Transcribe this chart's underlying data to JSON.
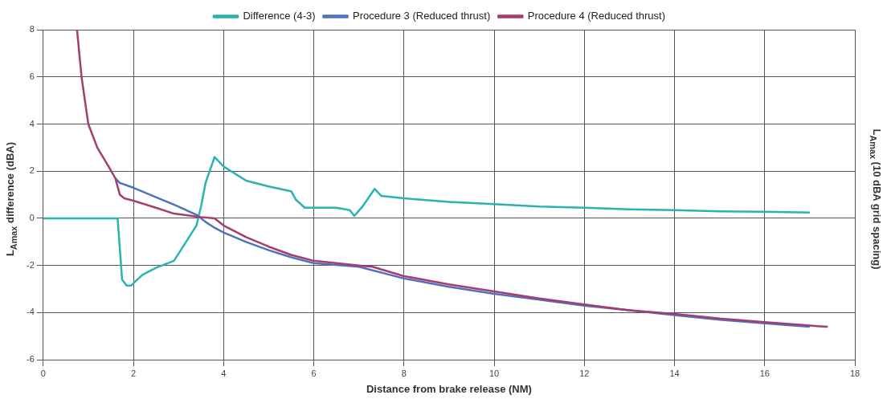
{
  "chart_data": {
    "type": "line",
    "xlabel": "Distance from brake release (NM)",
    "ylabel": "L$_{Amax}$ difference (dBA)",
    "y2label": "L$_{Amax}$ (10 dBA grid spacing)",
    "xlim": [
      0,
      18
    ],
    "xticks": [
      0,
      2,
      4,
      6,
      8,
      10,
      12,
      14,
      16,
      18
    ],
    "ylim": [
      -6,
      8
    ],
    "yticks": [
      -6,
      -4,
      -2,
      0,
      2,
      4,
      6,
      8
    ],
    "grid": true,
    "legend": "top",
    "marker": "none",
    "line_style": "solid",
    "series": [
      {
        "name": "Difference (4-3)",
        "color": "#2ab3b0",
        "x": [
          0,
          1.65,
          1.75,
          1.85,
          1.95,
          2.2,
          2.5,
          2.9,
          3.3,
          3.4,
          3.5,
          3.6,
          3.8,
          4.0,
          4.5,
          5.0,
          5.5,
          5.6,
          5.8,
          6.5,
          6.8,
          6.9,
          7.1,
          7.35,
          7.5,
          8,
          9,
          10,
          11,
          12,
          13,
          14,
          15,
          16,
          17
        ],
        "values": [
          0,
          0,
          -2.6,
          -2.85,
          -2.85,
          -2.4,
          -2.1,
          -1.8,
          -0.6,
          -0.3,
          0.5,
          1.5,
          2.6,
          2.2,
          1.6,
          1.35,
          1.15,
          0.8,
          0.45,
          0.45,
          0.35,
          0.1,
          0.55,
          1.25,
          0.95,
          0.85,
          0.7,
          0.6,
          0.5,
          0.45,
          0.38,
          0.35,
          0.3,
          0.28,
          0.25
        ]
      },
      {
        "name": "Procedure 3 (Reduced thrust)",
        "color": "#4f72be",
        "x": [
          1.6,
          1.7,
          2.0,
          2.5,
          3.0,
          3.4,
          3.6,
          3.8,
          4,
          4.5,
          5,
          5.5,
          6,
          7,
          8,
          9,
          10,
          11,
          12,
          13,
          14,
          15,
          16,
          17
        ],
        "values": [
          1.7,
          1.5,
          1.3,
          0.9,
          0.5,
          0.15,
          -0.15,
          -0.4,
          -0.6,
          -1.0,
          -1.35,
          -1.65,
          -1.9,
          -2.05,
          -2.55,
          -2.9,
          -3.2,
          -3.45,
          -3.7,
          -3.9,
          -4.1,
          -4.3,
          -4.45,
          -4.6
        ]
      },
      {
        "name": "Procedure 4 (Reduced thrust)",
        "color": "#a63c6f",
        "x": [
          0.75,
          0.85,
          1.0,
          1.2,
          1.45,
          1.6,
          1.7,
          1.8,
          2.0,
          2.5,
          2.9,
          3.3,
          3.5,
          3.8,
          4,
          4.5,
          5,
          5.5,
          6,
          7,
          7.3,
          8,
          9,
          10,
          11,
          12,
          13,
          14,
          15,
          16,
          17,
          17.4
        ],
        "values": [
          8,
          6,
          4.0,
          3.0,
          2.2,
          1.7,
          1.0,
          0.85,
          0.75,
          0.45,
          0.2,
          0.1,
          0.05,
          0.0,
          -0.3,
          -0.8,
          -1.2,
          -1.55,
          -1.8,
          -2.0,
          -2.05,
          -2.45,
          -2.8,
          -3.1,
          -3.4,
          -3.65,
          -3.9,
          -4.05,
          -4.25,
          -4.4,
          -4.55,
          -4.6
        ]
      }
    ]
  }
}
